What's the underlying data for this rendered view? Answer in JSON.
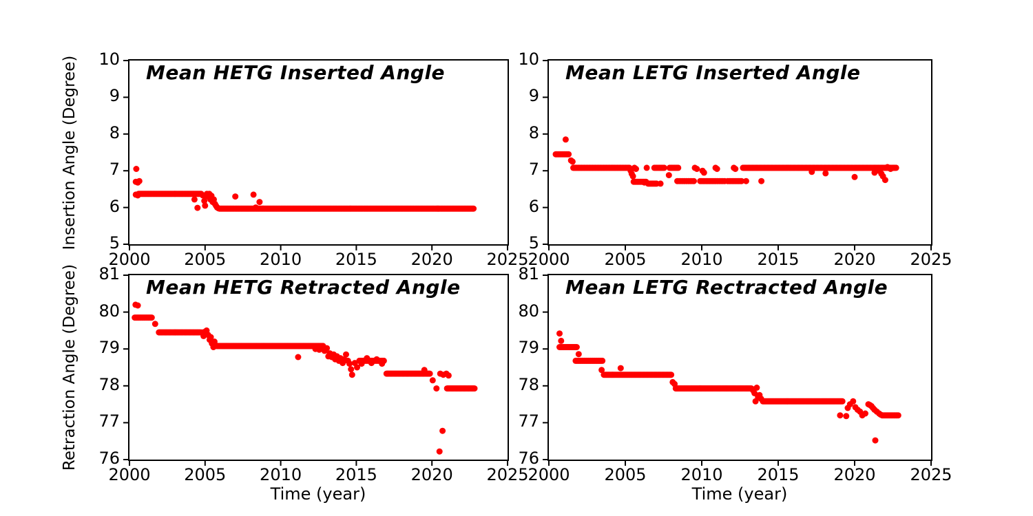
{
  "figure": {
    "background": "#ffffff",
    "axis_color": "#000000",
    "marker_color": "#ff0000",
    "xlabel": "Time (year)",
    "ylabel_top": "Insertion Angle (Degree)",
    "ylabel_bottom": "Retraction Angle (Degree)"
  },
  "chart_data": [
    {
      "id": "hetg-inserted",
      "type": "scatter",
      "title": "Mean HETG Inserted Angle",
      "xlabel": "",
      "ylabel": "Insertion Angle (Degree)",
      "xlim": [
        2000,
        2025
      ],
      "ylim": [
        5,
        10
      ],
      "x_ticks": [
        2000,
        2005,
        2010,
        2015,
        2020,
        2025
      ],
      "y_ticks": [
        5,
        6,
        7,
        8,
        9,
        10
      ],
      "marker": {
        "shape": "circle",
        "color": "#ff0000",
        "size": 9
      },
      "grid": false,
      "bands": [
        {
          "from": 2000.6,
          "to": 2004.75,
          "y": 6.37,
          "step": 0.06
        },
        {
          "from": 2005.95,
          "to": 2022.8,
          "y": 5.97,
          "step": 0.06
        }
      ],
      "points": [
        [
          2000.45,
          7.05
        ],
        [
          2000.42,
          6.7
        ],
        [
          2000.55,
          6.68
        ],
        [
          2000.65,
          6.72
        ],
        [
          2000.42,
          6.35
        ],
        [
          2000.55,
          6.33
        ],
        [
          2004.3,
          6.22
        ],
        [
          2004.5,
          5.99
        ],
        [
          2004.85,
          6.33
        ],
        [
          2004.95,
          6.18
        ],
        [
          2005.0,
          6.05
        ],
        [
          2005.05,
          6.32
        ],
        [
          2005.12,
          6.37
        ],
        [
          2005.2,
          6.3
        ],
        [
          2005.28,
          6.37
        ],
        [
          2005.35,
          6.22
        ],
        [
          2005.42,
          6.32
        ],
        [
          2005.5,
          6.15
        ],
        [
          2005.58,
          6.22
        ],
        [
          2005.65,
          6.1
        ],
        [
          2005.72,
          6.05
        ],
        [
          2005.8,
          6.0
        ],
        [
          2005.88,
          5.98
        ],
        [
          2007.0,
          6.3
        ],
        [
          2008.2,
          6.35
        ],
        [
          2008.35,
          6.0
        ],
        [
          2008.6,
          6.15
        ]
      ]
    },
    {
      "id": "letg-inserted",
      "type": "scatter",
      "title": "Mean LETG Inserted Angle",
      "xlabel": "",
      "ylabel": "Insertion Angle (Degree)",
      "xlim": [
        2000,
        2025
      ],
      "ylim": [
        5,
        10
      ],
      "x_ticks": [
        2000,
        2005,
        2010,
        2015,
        2020,
        2025
      ],
      "y_ticks": [
        5,
        6,
        7,
        8,
        9,
        10
      ],
      "marker": {
        "shape": "circle",
        "color": "#ff0000",
        "size": 9
      },
      "grid": false,
      "bands": [
        {
          "from": 2000.45,
          "to": 2001.35,
          "y": 7.45,
          "step": 0.07
        },
        {
          "from": 2001.6,
          "to": 2005.3,
          "y": 7.08,
          "step": 0.06
        },
        {
          "from": 2005.55,
          "to": 2006.35,
          "y": 6.7,
          "step": 0.08
        },
        {
          "from": 2006.5,
          "to": 2007.1,
          "y": 6.65,
          "step": 0.09
        },
        {
          "from": 2006.9,
          "to": 2007.6,
          "y": 7.08,
          "step": 0.08
        },
        {
          "from": 2007.9,
          "to": 2008.5,
          "y": 7.08,
          "step": 0.08
        },
        {
          "from": 2008.4,
          "to": 2009.5,
          "y": 6.72,
          "step": 0.12
        },
        {
          "from": 2009.9,
          "to": 2010.8,
          "y": 6.72,
          "step": 0.1
        },
        {
          "from": 2010.9,
          "to": 2011.6,
          "y": 6.72,
          "step": 0.12
        },
        {
          "from": 2011.7,
          "to": 2012.6,
          "y": 6.72,
          "step": 0.1
        },
        {
          "from": 2012.7,
          "to": 2022.75,
          "y": 7.08,
          "step": 0.055
        }
      ],
      "points": [
        [
          2001.1,
          7.85
        ],
        [
          2001.45,
          7.28
        ],
        [
          2001.55,
          7.25
        ],
        [
          2005.35,
          7.0
        ],
        [
          2005.42,
          6.92
        ],
        [
          2005.5,
          6.85
        ],
        [
          2005.6,
          7.08
        ],
        [
          2005.7,
          7.05
        ],
        [
          2006.25,
          6.68
        ],
        [
          2006.4,
          7.08
        ],
        [
          2007.3,
          6.65
        ],
        [
          2007.85,
          6.88
        ],
        [
          2009.55,
          7.08
        ],
        [
          2009.68,
          7.05
        ],
        [
          2010.05,
          7.0
        ],
        [
          2010.15,
          6.95
        ],
        [
          2010.9,
          7.08
        ],
        [
          2011.0,
          7.05
        ],
        [
          2012.1,
          7.08
        ],
        [
          2012.2,
          7.05
        ],
        [
          2012.9,
          6.72
        ],
        [
          2013.9,
          6.72
        ],
        [
          2017.2,
          6.97
        ],
        [
          2018.1,
          6.93
        ],
        [
          2020.0,
          6.83
        ],
        [
          2021.3,
          6.95
        ],
        [
          2021.6,
          7.0
        ],
        [
          2021.75,
          6.92
        ],
        [
          2021.85,
          6.85
        ],
        [
          2022.0,
          6.75
        ],
        [
          2022.15,
          7.1
        ],
        [
          2022.35,
          7.05
        ]
      ]
    },
    {
      "id": "hetg-retracted",
      "type": "scatter",
      "title": "Mean HETG Retracted Angle",
      "xlabel": "Time (year)",
      "ylabel": "Retraction Angle (Degree)",
      "xlim": [
        2000,
        2025
      ],
      "ylim": [
        76,
        81
      ],
      "x_ticks": [
        2000,
        2005,
        2010,
        2015,
        2020,
        2025
      ],
      "y_ticks": [
        76,
        77,
        78,
        79,
        80,
        81
      ],
      "marker": {
        "shape": "circle",
        "color": "#ff0000",
        "size": 9
      },
      "grid": false,
      "bands": [
        {
          "from": 2000.35,
          "to": 2001.5,
          "y": 79.85,
          "step": 0.07
        },
        {
          "from": 2001.95,
          "to": 2004.7,
          "y": 79.45,
          "step": 0.055
        },
        {
          "from": 2005.75,
          "to": 2012.8,
          "y": 79.08,
          "step": 0.05
        },
        {
          "from": 2015.2,
          "to": 2016.85,
          "y": 78.68,
          "step": 0.09
        },
        {
          "from": 2017.0,
          "to": 2019.9,
          "y": 78.33,
          "step": 0.055
        },
        {
          "from": 2021.0,
          "to": 2022.85,
          "y": 77.93,
          "step": 0.055
        }
      ],
      "points": [
        [
          2000.4,
          80.2
        ],
        [
          2000.55,
          80.18
        ],
        [
          2001.7,
          79.68
        ],
        [
          2004.8,
          79.45
        ],
        [
          2004.9,
          79.35
        ],
        [
          2005.0,
          79.47
        ],
        [
          2005.1,
          79.5
        ],
        [
          2005.2,
          79.38
        ],
        [
          2005.3,
          79.25
        ],
        [
          2005.38,
          79.32
        ],
        [
          2005.45,
          79.15
        ],
        [
          2005.55,
          79.05
        ],
        [
          2005.62,
          79.2
        ],
        [
          2005.7,
          79.1
        ],
        [
          2011.15,
          78.78
        ],
        [
          2012.3,
          79.0
        ],
        [
          2012.55,
          78.98
        ],
        [
          2012.9,
          78.95
        ],
        [
          2013.05,
          79.02
        ],
        [
          2013.15,
          78.8
        ],
        [
          2013.25,
          78.88
        ],
        [
          2013.38,
          78.78
        ],
        [
          2013.5,
          78.85
        ],
        [
          2013.6,
          78.72
        ],
        [
          2013.72,
          78.8
        ],
        [
          2013.85,
          78.68
        ],
        [
          2013.95,
          78.75
        ],
        [
          2014.1,
          78.62
        ],
        [
          2014.2,
          78.72
        ],
        [
          2014.32,
          78.85
        ],
        [
          2014.45,
          78.68
        ],
        [
          2014.55,
          78.6
        ],
        [
          2014.65,
          78.45
        ],
        [
          2014.72,
          78.3
        ],
        [
          2014.9,
          78.62
        ],
        [
          2015.05,
          78.5
        ],
        [
          2015.35,
          78.6
        ],
        [
          2015.7,
          78.75
        ],
        [
          2016.0,
          78.62
        ],
        [
          2016.35,
          78.72
        ],
        [
          2016.7,
          78.6
        ],
        [
          2019.5,
          78.43
        ],
        [
          2020.05,
          78.15
        ],
        [
          2020.3,
          77.93
        ],
        [
          2020.55,
          78.33
        ],
        [
          2020.75,
          78.3
        ],
        [
          2020.95,
          78.33
        ],
        [
          2021.1,
          78.28
        ],
        [
          2020.7,
          76.78
        ],
        [
          2020.5,
          76.22
        ]
      ]
    },
    {
      "id": "letg-retracted",
      "type": "scatter",
      "title": "Mean LETG Rectracted Angle",
      "xlabel": "Time (year)",
      "ylabel": "Retraction Angle (Degree)",
      "xlim": [
        2000,
        2025
      ],
      "ylim": [
        76,
        81
      ],
      "x_ticks": [
        2000,
        2005,
        2010,
        2015,
        2020,
        2025
      ],
      "y_ticks": [
        76,
        77,
        78,
        79,
        80,
        81
      ],
      "marker": {
        "shape": "circle",
        "color": "#ff0000",
        "size": 9
      },
      "grid": false,
      "bands": [
        {
          "from": 2000.7,
          "to": 2001.85,
          "y": 79.05,
          "step": 0.07
        },
        {
          "from": 2001.75,
          "to": 2003.55,
          "y": 78.68,
          "step": 0.07
        },
        {
          "from": 2003.6,
          "to": 2008.05,
          "y": 78.3,
          "step": 0.055
        },
        {
          "from": 2008.3,
          "to": 2013.25,
          "y": 77.93,
          "step": 0.05
        },
        {
          "from": 2014.0,
          "to": 2019.2,
          "y": 77.58,
          "step": 0.05
        },
        {
          "from": 2021.8,
          "to": 2022.9,
          "y": 77.2,
          "step": 0.07
        }
      ],
      "points": [
        [
          2000.7,
          79.42
        ],
        [
          2000.8,
          79.22
        ],
        [
          2001.95,
          78.86
        ],
        [
          2003.45,
          78.43
        ],
        [
          2004.7,
          78.48
        ],
        [
          2008.1,
          78.1
        ],
        [
          2008.22,
          78.05
        ],
        [
          2013.35,
          77.88
        ],
        [
          2013.45,
          77.8
        ],
        [
          2013.52,
          77.58
        ],
        [
          2013.6,
          77.95
        ],
        [
          2013.68,
          77.7
        ],
        [
          2013.78,
          77.75
        ],
        [
          2013.88,
          77.65
        ],
        [
          2019.05,
          77.2
        ],
        [
          2019.45,
          77.18
        ],
        [
          2019.55,
          77.4
        ],
        [
          2019.7,
          77.5
        ],
        [
          2019.9,
          77.58
        ],
        [
          2020.05,
          77.42
        ],
        [
          2020.2,
          77.35
        ],
        [
          2020.35,
          77.3
        ],
        [
          2020.5,
          77.2
        ],
        [
          2020.7,
          77.25
        ],
        [
          2020.9,
          77.5
        ],
        [
          2021.0,
          77.48
        ],
        [
          2021.1,
          77.45
        ],
        [
          2021.2,
          77.4
        ],
        [
          2021.3,
          77.35
        ],
        [
          2021.45,
          77.3
        ],
        [
          2021.6,
          77.25
        ],
        [
          2021.7,
          77.22
        ],
        [
          2021.35,
          76.52
        ]
      ]
    }
  ]
}
